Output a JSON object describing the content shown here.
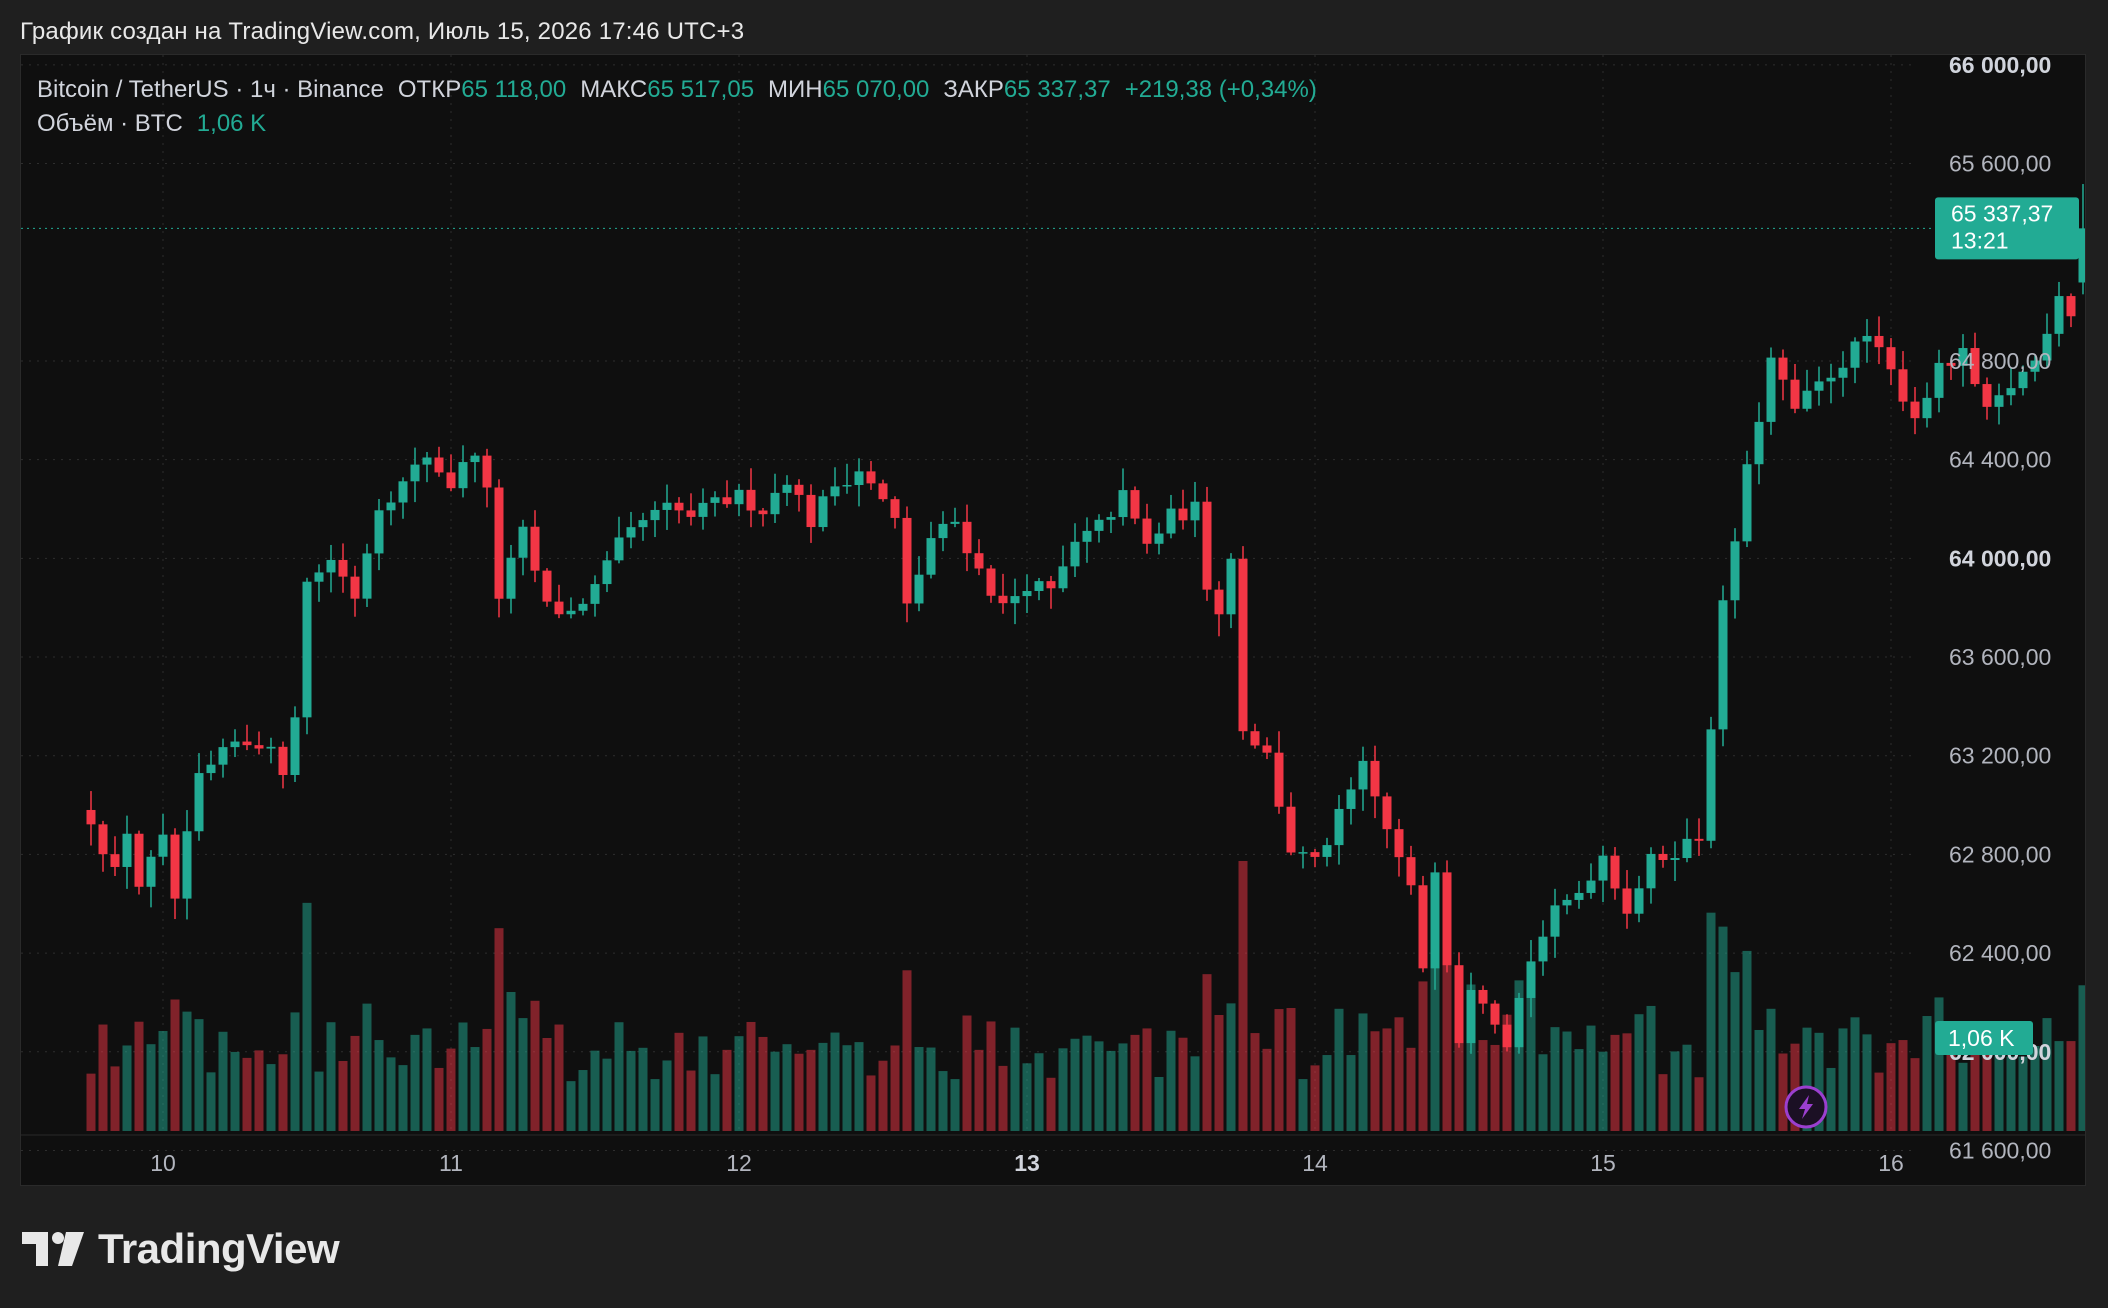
{
  "header": {
    "title": "График создан на TradingView.com, Июль 15, 2026 17:46 UTC+3"
  },
  "legend": {
    "symbol": "Bitcoin / TetherUS · 1ч · Binance",
    "open_label": "ОТКР",
    "open_value": "65 118,00",
    "high_label": "МАКС",
    "high_value": "65 517,05",
    "low_label": "МИН",
    "low_value": "65 070,00",
    "close_label": "ЗАКР",
    "close_value": "65 337,37",
    "change": "+219,38 (+0,34%)",
    "volume_label": "Объём · BTC",
    "volume_value": "1,06 K"
  },
  "price_tag": {
    "price": "65 337,37",
    "countdown": "13:21"
  },
  "volume_tag": "1,06 K",
  "footer": {
    "brand": "TradingView"
  },
  "colors": {
    "up": "#22ab94",
    "down": "#f23645",
    "up_volume": "#22ab94",
    "down_volume": "#f23645",
    "background": "#0f0f0f",
    "grid": "#2e2e2e",
    "axis_text": "#b2b5be"
  },
  "chart_data": {
    "type": "candlestick",
    "symbol": "BTCUSDT",
    "interval": "1h",
    "y_ticks": [
      "66 000,00",
      "65 600,00",
      "64 800,00",
      "64 400,00",
      "64 000,00",
      "63 600,00",
      "63 200,00",
      "62 800,00",
      "62 400,00",
      "62 000,00",
      "61 600,00"
    ],
    "y_tick_values": [
      66000,
      65600,
      64800,
      64400,
      64000,
      63600,
      63200,
      62800,
      62400,
      62000,
      61600
    ],
    "bold_ticks": [
      66000,
      64000,
      62000
    ],
    "x_ticks": [
      "10",
      "11",
      "12",
      "13",
      "14",
      "15",
      "16"
    ],
    "bold_x_tick": "13",
    "ylim": [
      61460,
      66040
    ],
    "grid": true,
    "last_price": 65337.37,
    "candles_desc": "hourly OHLC, x is hours since 9 Jul 18:00 local",
    "candles": []
  }
}
